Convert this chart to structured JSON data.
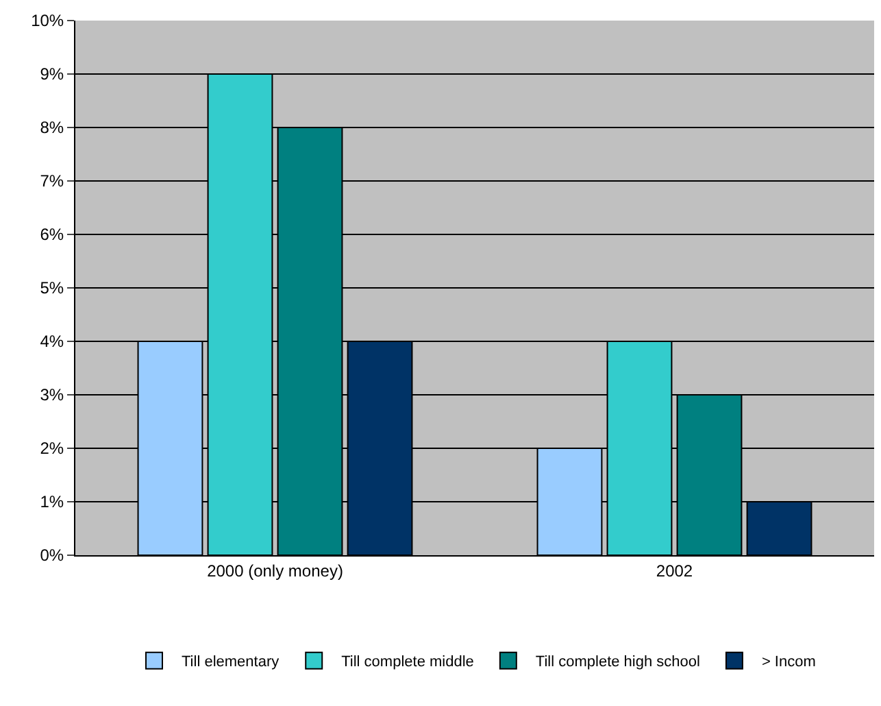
{
  "chart_data": {
    "type": "bar",
    "categories": [
      "2000 (only money)",
      "2002"
    ],
    "series": [
      {
        "name": "Till elementary",
        "color": "#99ccff",
        "values": [
          4,
          2
        ]
      },
      {
        "name": "Till complete middle",
        "color": "#33cccc",
        "values": [
          9,
          4
        ]
      },
      {
        "name": "Till complete high school",
        "color": "#008080",
        "values": [
          8,
          3
        ]
      },
      {
        "name": "> Incom",
        "color": "#003366",
        "values": [
          4,
          1
        ]
      }
    ],
    "ylim": [
      0,
      10
    ],
    "yticks": [
      {
        "value": 0,
        "label": "0%"
      },
      {
        "value": 1,
        "label": "1%"
      },
      {
        "value": 2,
        "label": "2%"
      },
      {
        "value": 3,
        "label": "3%"
      },
      {
        "value": 4,
        "label": "4%"
      },
      {
        "value": 5,
        "label": "5%"
      },
      {
        "value": 6,
        "label": "6%"
      },
      {
        "value": 7,
        "label": "7%"
      },
      {
        "value": 8,
        "label": "8%"
      },
      {
        "value": 9,
        "label": "9%"
      },
      {
        "value": 10,
        "label": "10%"
      }
    ],
    "grid": "y",
    "legend": "bottom"
  }
}
